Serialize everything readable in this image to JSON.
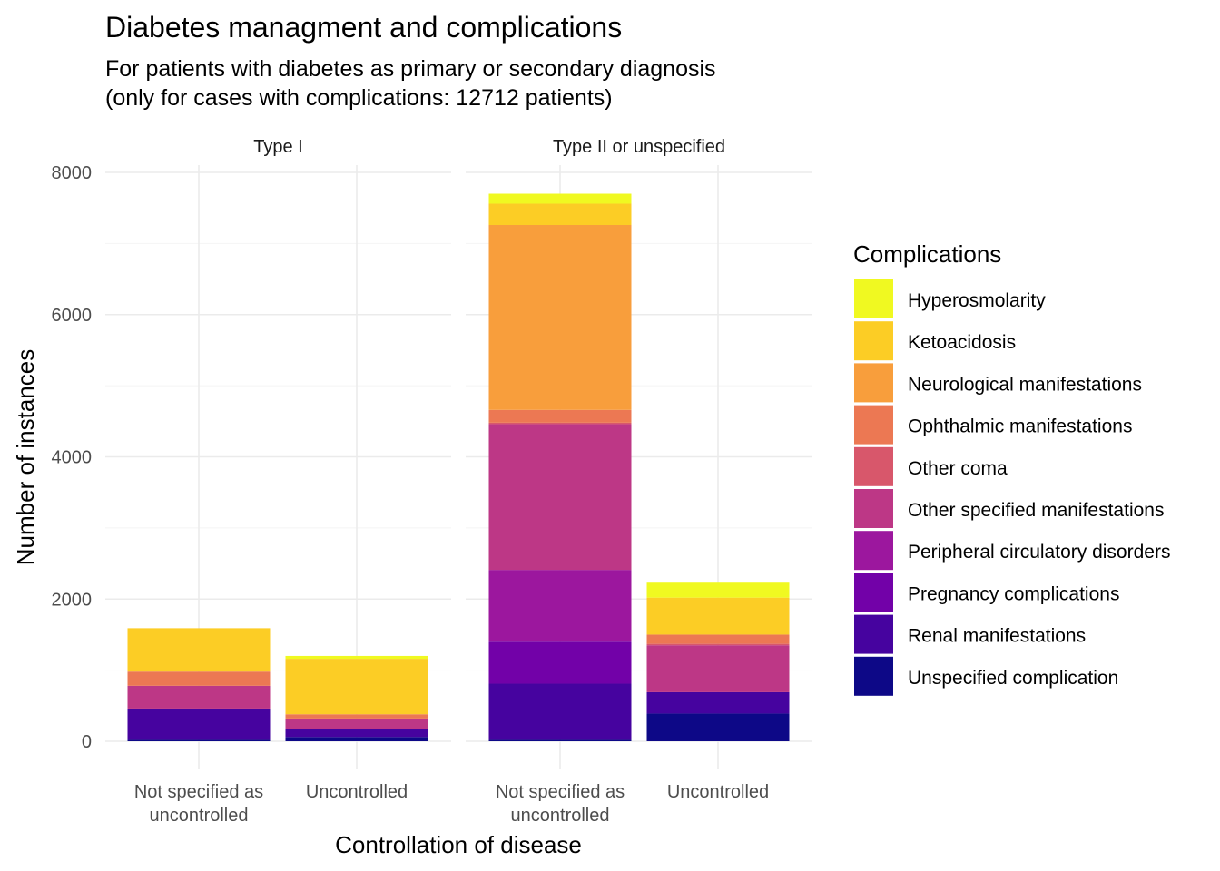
{
  "chart_data": {
    "type": "bar",
    "stacked": true,
    "title": "Diabetes managment and complications",
    "subtitle_lines": [
      "For patients with diabetes as primary or secondary diagnosis",
      "(only for cases with complications: 12712 patients)"
    ],
    "xlabel": "Controllation of disease",
    "ylabel": "Number of instances",
    "ylim": [
      0,
      8000
    ],
    "yticks": [
      "0",
      "2000",
      "4000",
      "6000",
      "8000"
    ],
    "categories": [
      [
        "Not specified as",
        "uncontrolled"
      ],
      [
        "Uncontrolled"
      ]
    ],
    "facets": [
      "Type I",
      "Type II or unspecified"
    ],
    "legend": {
      "title": "Complications",
      "position": "right",
      "items": [
        {
          "name": "Hyperosmolarity",
          "color": "#f0f921"
        },
        {
          "name": "Ketoacidosis",
          "color": "#fccd25"
        },
        {
          "name": "Neurological manifestations",
          "color": "#f89e3c"
        },
        {
          "name": "Ophthalmic manifestations",
          "color": "#ec7853"
        },
        {
          "name": "Other coma",
          "color": "#d8576b"
        },
        {
          "name": "Other specified manifestations",
          "color": "#bd3786"
        },
        {
          "name": "Peripheral circulatory disorders",
          "color": "#9c179e"
        },
        {
          "name": "Pregnancy complications",
          "color": "#7201a8"
        },
        {
          "name": "Renal manifestations",
          "color": "#46039f"
        },
        {
          "name": "Unspecified complication",
          "color": "#0d0887"
        }
      ]
    },
    "grid": true,
    "series_values_by_facet": {
      "Type I": {
        "Not specified as uncontrolled": {
          "Unspecified complication": 20,
          "Renal manifestations": 440,
          "Pregnancy complications": 0,
          "Peripheral circulatory disorders": 0,
          "Other specified manifestations": 320,
          "Other coma": 0,
          "Ophthalmic manifestations": 200,
          "Neurological manifestations": 0,
          "Ketoacidosis": 610,
          "Hyperosmolarity": 0
        },
        "Uncontrolled": {
          "Unspecified complication": 60,
          "Renal manifestations": 110,
          "Pregnancy complications": 0,
          "Peripheral circulatory disorders": 0,
          "Other specified manifestations": 150,
          "Other coma": 0,
          "Ophthalmic manifestations": 60,
          "Neurological manifestations": 0,
          "Ketoacidosis": 780,
          "Hyperosmolarity": 40
        }
      },
      "Type II or unspecified": {
        "Not specified as uncontrolled": {
          "Unspecified complication": 20,
          "Renal manifestations": 790,
          "Pregnancy complications": 590,
          "Peripheral circulatory disorders": 1010,
          "Other specified manifestations": 2050,
          "Other coma": 20,
          "Ophthalmic manifestations": 180,
          "Neurological manifestations": 2600,
          "Ketoacidosis": 300,
          "Hyperosmolarity": 140
        },
        "Uncontrolled": {
          "Unspecified complication": 390,
          "Renal manifestations": 300,
          "Pregnancy complications": 0,
          "Peripheral circulatory disorders": 0,
          "Other specified manifestations": 660,
          "Other coma": 20,
          "Ophthalmic manifestations": 130,
          "Neurological manifestations": 0,
          "Ketoacidosis": 520,
          "Hyperosmolarity": 210
        }
      }
    }
  }
}
